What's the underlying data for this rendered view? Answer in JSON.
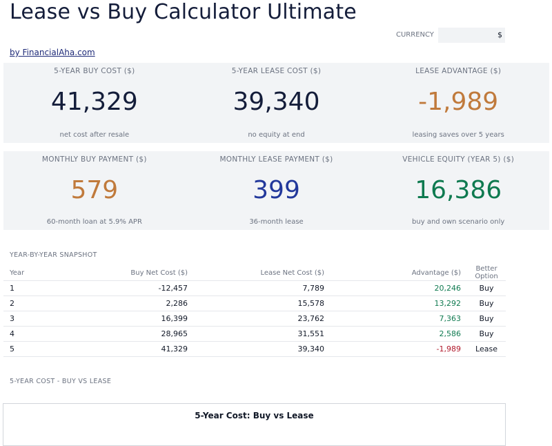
{
  "header": {
    "title": "Lease vs Buy Calculator Ultimate",
    "byline": "by FinancialAha.com",
    "currency_label": "CURRENCY",
    "currency_value": "$"
  },
  "colors": {
    "dark_value": "#141d3a",
    "orange": "#c07a3c",
    "blue": "#22389b",
    "green": "#0f7a50",
    "red": "#b0182b"
  },
  "metrics_row1": [
    {
      "label": "5-YEAR BUY COST ($)",
      "value": "41,329",
      "sub": "net cost after resale"
    },
    {
      "label": "5-YEAR LEASE COST ($)",
      "value": "39,340",
      "sub": "no equity at end"
    },
    {
      "label": "LEASE ADVANTAGE ($)",
      "value": "-1,989",
      "sub": "leasing saves over 5 years"
    }
  ],
  "metrics_row2": [
    {
      "label": "MONTHLY BUY PAYMENT ($)",
      "value": "579",
      "sub": "60-month loan at 5.9% APR"
    },
    {
      "label": "MONTHLY LEASE PAYMENT ($)",
      "value": "399",
      "sub": "36-month lease"
    },
    {
      "label": "VEHICLE EQUITY (YEAR 5) ($)",
      "value": "16,386",
      "sub": "buy and own scenario only"
    }
  ],
  "snapshot": {
    "title": "YEAR-BY-YEAR SNAPSHOT",
    "columns": [
      "Year",
      "Buy Net Cost ($)",
      "Lease Net Cost ($)",
      "Advantage ($)",
      "Better Option"
    ],
    "rows": [
      {
        "year": "1",
        "buy": "-12,457",
        "lease": "7,789",
        "advantage": "20,246",
        "better": "Buy"
      },
      {
        "year": "2",
        "buy": "2,286",
        "lease": "15,578",
        "advantage": "13,292",
        "better": "Buy"
      },
      {
        "year": "3",
        "buy": "16,399",
        "lease": "23,762",
        "advantage": "7,363",
        "better": "Buy"
      },
      {
        "year": "4",
        "buy": "28,965",
        "lease": "31,551",
        "advantage": "2,586",
        "better": "Buy"
      },
      {
        "year": "5",
        "buy": "41,329",
        "lease": "39,340",
        "advantage": "-1,989",
        "better": "Lease"
      }
    ]
  },
  "chart_section": {
    "heading": "5-YEAR COST - BUY VS LEASE",
    "chart_title": "5-Year Cost: Buy vs Lease"
  }
}
